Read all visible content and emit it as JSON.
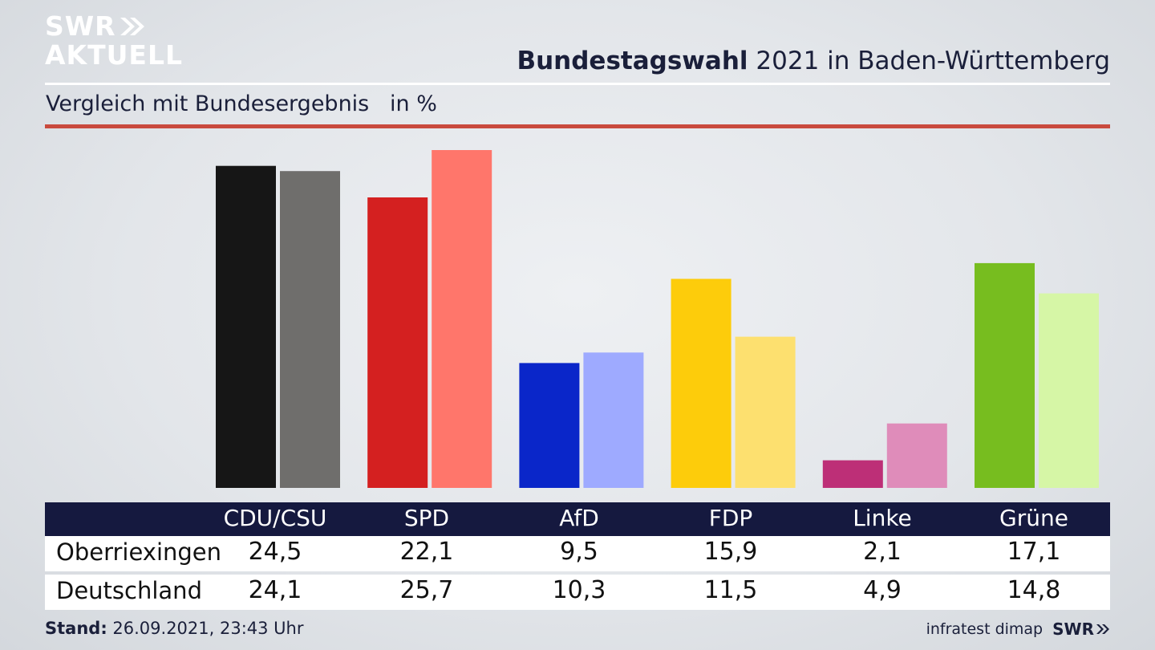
{
  "brand": {
    "logo_line1": "SWR",
    "logo_line2": "AKTUELL",
    "footer_logo": "SWR",
    "source": "infratest dimap"
  },
  "header": {
    "title_bold": "Bundestagswahl",
    "title_rest": " 2021 in Baden-Württemberg",
    "subtitle": "Vergleich mit Bundesergebnis   in %"
  },
  "footer": {
    "stand_label": "Stand:",
    "stand_value": " 26.09.2021, 23:43 Uhr"
  },
  "colors": {
    "accent_red": "#c94a3e",
    "header_navy": "#15193f"
  },
  "chart_data": {
    "type": "bar",
    "title": "Bundestagswahl 2021 in Baden-Württemberg",
    "subtitle": "Vergleich mit Bundesergebnis",
    "unit": "in %",
    "categories": [
      "CDU/CSU",
      "SPD",
      "AfD",
      "FDP",
      "Linke",
      "Grüne"
    ],
    "series": [
      {
        "name": "Oberriexingen",
        "values": [
          24.5,
          22.1,
          9.5,
          15.9,
          2.1,
          17.1
        ],
        "display": [
          "24,5",
          "22,1",
          "9,5",
          "15,9",
          "2,1",
          "17,1"
        ],
        "colors": [
          "#161616",
          "#d42020",
          "#0a26c9",
          "#fdcc0b",
          "#bd2f77",
          "#77bd1f"
        ]
      },
      {
        "name": "Deutschland",
        "values": [
          24.1,
          25.7,
          10.3,
          11.5,
          4.9,
          14.8
        ],
        "display": [
          "24,1",
          "25,7",
          "10,3",
          "11,5",
          "4,9",
          "14,8"
        ],
        "colors": [
          "#6f6e6c",
          "#ff766b",
          "#9eaaff",
          "#fde06f",
          "#df8cba",
          "#d6f6a6"
        ]
      }
    ],
    "ylim": [
      0,
      25.7
    ],
    "grid": false,
    "legend": "table-below"
  }
}
